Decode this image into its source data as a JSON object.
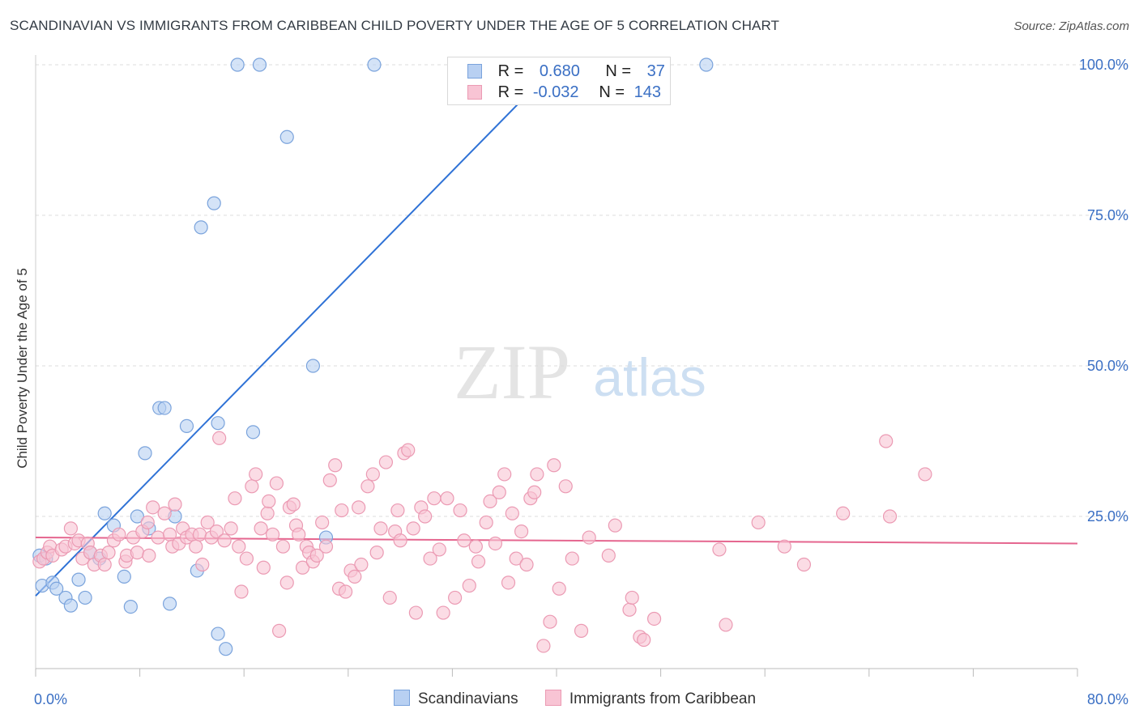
{
  "title": "SCANDINAVIAN VS IMMIGRANTS FROM CARIBBEAN CHILD POVERTY UNDER THE AGE OF 5 CORRELATION CHART",
  "source": "Source: ZipAtlas.com",
  "watermark": {
    "zip": "ZIP",
    "atlas": "atlas"
  },
  "legend": {
    "rows": [
      {
        "r_label": "R =",
        "r_value": "0.680",
        "n_label": "N =",
        "n_value": "37"
      },
      {
        "r_label": "R =",
        "r_value": "-0.032",
        "n_label": "N =",
        "n_value": "143"
      }
    ]
  },
  "bottom_legend": [
    "Scandinavians",
    "Immigrants from Caribbean"
  ],
  "chart_data": {
    "type": "scatter",
    "title": "SCANDINAVIAN VS IMMIGRANTS FROM CARIBBEAN CHILD POVERTY UNDER THE AGE OF 5 CORRELATION CHART",
    "xlabel": "",
    "ylabel": "Child Poverty Under the Age of 5",
    "xlim": [
      0,
      80
    ],
    "ylim": [
      0,
      100
    ],
    "x_tick_labels": [
      "0.0%",
      "80.0%"
    ],
    "y_ticks": [
      25,
      50,
      75,
      100
    ],
    "y_tick_labels": [
      "25.0%",
      "50.0%",
      "75.0%",
      "100.0%"
    ],
    "grid": true,
    "colors": {
      "scandinavians_fill": "#b8d0f2",
      "scandinavians_stroke": "#7aa3dc",
      "scandinavians_line": "#2f72d6",
      "caribbean_fill": "#f8c4d4",
      "caribbean_stroke": "#eb9ab3",
      "caribbean_line": "#e5668f",
      "axis_label": "#3a6fc4"
    },
    "series": [
      {
        "name": "Scandinavians",
        "r": 0.68,
        "n": 37,
        "trend": {
          "x": [
            0,
            40
          ],
          "y": [
            11.8,
            100
          ]
        },
        "points": [
          [
            0.3,
            18.5
          ],
          [
            0.5,
            13.5
          ],
          [
            1.3,
            14.0
          ],
          [
            1.6,
            13.0
          ],
          [
            2.3,
            11.5
          ],
          [
            2.7,
            10.2
          ],
          [
            3.3,
            14.5
          ],
          [
            3.8,
            11.5
          ],
          [
            4.2,
            19.0
          ],
          [
            4.9,
            18.0
          ],
          [
            5.3,
            25.5
          ],
          [
            6.0,
            23.5
          ],
          [
            6.8,
            15.0
          ],
          [
            7.3,
            10.0
          ],
          [
            7.8,
            25.0
          ],
          [
            8.4,
            35.5
          ],
          [
            8.7,
            23.0
          ],
          [
            9.5,
            43.0
          ],
          [
            9.9,
            43.0
          ],
          [
            10.3,
            10.5
          ],
          [
            10.7,
            25.0
          ],
          [
            11.6,
            40.0
          ],
          [
            12.4,
            16.0
          ],
          [
            12.7,
            73.0
          ],
          [
            13.7,
            77.0
          ],
          [
            14.0,
            40.5
          ],
          [
            14.0,
            5.5
          ],
          [
            14.6,
            3.0
          ],
          [
            15.5,
            100
          ],
          [
            16.7,
            39.0
          ],
          [
            17.2,
            100
          ],
          [
            19.3,
            88.0
          ],
          [
            21.3,
            50.0
          ],
          [
            22.3,
            21.5
          ],
          [
            26.0,
            100
          ],
          [
            51.5,
            100
          ],
          [
            0.8,
            18.0
          ]
        ]
      },
      {
        "name": "Immigrants from Caribbean",
        "r": -0.032,
        "n": 143,
        "trend": {
          "x": [
            0,
            80
          ],
          "y": [
            21.5,
            20.5
          ]
        },
        "points": [
          [
            0.3,
            17.5
          ],
          [
            0.6,
            18.0
          ],
          [
            0.9,
            19.0
          ],
          [
            1.1,
            20.0
          ],
          [
            1.3,
            18.5
          ],
          [
            2.0,
            19.5
          ],
          [
            2.3,
            20.0
          ],
          [
            2.7,
            23.0
          ],
          [
            3.0,
            20.5
          ],
          [
            3.3,
            21.0
          ],
          [
            3.6,
            18.0
          ],
          [
            4.0,
            20.5
          ],
          [
            4.2,
            19.0
          ],
          [
            4.5,
            17.0
          ],
          [
            5.0,
            18.5
          ],
          [
            5.3,
            17.0
          ],
          [
            5.6,
            19.0
          ],
          [
            6.0,
            21.0
          ],
          [
            6.4,
            22.0
          ],
          [
            6.9,
            17.5
          ],
          [
            7.0,
            18.5
          ],
          [
            7.5,
            21.5
          ],
          [
            7.8,
            19.0
          ],
          [
            8.2,
            22.5
          ],
          [
            8.6,
            24.0
          ],
          [
            8.7,
            18.5
          ],
          [
            9.0,
            26.5
          ],
          [
            9.4,
            21.5
          ],
          [
            9.9,
            25.5
          ],
          [
            10.3,
            22.0
          ],
          [
            10.5,
            20.0
          ],
          [
            10.7,
            27.0
          ],
          [
            11.0,
            20.5
          ],
          [
            11.3,
            23.0
          ],
          [
            11.6,
            21.5
          ],
          [
            12.0,
            22.0
          ],
          [
            12.3,
            20.0
          ],
          [
            12.6,
            22.0
          ],
          [
            12.8,
            17.0
          ],
          [
            13.2,
            24.0
          ],
          [
            13.5,
            21.5
          ],
          [
            13.9,
            22.5
          ],
          [
            14.1,
            38.0
          ],
          [
            14.5,
            21.0
          ],
          [
            15.0,
            23.0
          ],
          [
            15.3,
            28.0
          ],
          [
            15.6,
            20.0
          ],
          [
            15.8,
            12.5
          ],
          [
            16.2,
            18.0
          ],
          [
            16.6,
            30.0
          ],
          [
            16.9,
            32.0
          ],
          [
            17.3,
            23.0
          ],
          [
            17.5,
            16.5
          ],
          [
            17.8,
            25.5
          ],
          [
            17.9,
            27.5
          ],
          [
            18.2,
            22.0
          ],
          [
            18.5,
            30.5
          ],
          [
            18.7,
            6.0
          ],
          [
            19.0,
            20.0
          ],
          [
            19.3,
            14.0
          ],
          [
            19.5,
            26.5
          ],
          [
            19.8,
            27.0
          ],
          [
            20.0,
            23.5
          ],
          [
            20.2,
            22.0
          ],
          [
            20.5,
            16.5
          ],
          [
            20.8,
            20.0
          ],
          [
            21.0,
            19.0
          ],
          [
            21.3,
            17.5
          ],
          [
            21.6,
            18.5
          ],
          [
            22.0,
            24.0
          ],
          [
            22.3,
            20.0
          ],
          [
            22.6,
            31.0
          ],
          [
            23.0,
            33.5
          ],
          [
            23.3,
            13.0
          ],
          [
            23.5,
            26.0
          ],
          [
            23.8,
            12.5
          ],
          [
            24.2,
            16.0
          ],
          [
            24.5,
            15.0
          ],
          [
            24.8,
            26.5
          ],
          [
            25.0,
            17.0
          ],
          [
            25.5,
            30.0
          ],
          [
            25.9,
            32.0
          ],
          [
            26.2,
            19.0
          ],
          [
            26.5,
            23.0
          ],
          [
            26.9,
            34.0
          ],
          [
            27.2,
            11.5
          ],
          [
            27.6,
            22.5
          ],
          [
            27.8,
            26.0
          ],
          [
            28.0,
            21.0
          ],
          [
            28.3,
            35.5
          ],
          [
            28.6,
            36.0
          ],
          [
            29.0,
            23.0
          ],
          [
            29.2,
            9.0
          ],
          [
            29.6,
            26.5
          ],
          [
            29.9,
            25.0
          ],
          [
            30.3,
            18.0
          ],
          [
            30.6,
            28.0
          ],
          [
            31.0,
            19.5
          ],
          [
            31.3,
            9.0
          ],
          [
            31.6,
            28.0
          ],
          [
            32.2,
            11.5
          ],
          [
            32.6,
            26.0
          ],
          [
            32.9,
            21.0
          ],
          [
            33.3,
            13.5
          ],
          [
            33.8,
            20.0
          ],
          [
            34.0,
            17.5
          ],
          [
            34.6,
            24.0
          ],
          [
            34.9,
            27.5
          ],
          [
            35.3,
            20.5
          ],
          [
            35.6,
            29.0
          ],
          [
            36.0,
            32.0
          ],
          [
            36.3,
            14.0
          ],
          [
            36.6,
            25.5
          ],
          [
            36.9,
            18.0
          ],
          [
            37.3,
            22.5
          ],
          [
            37.7,
            17.0
          ],
          [
            38.0,
            28.0
          ],
          [
            38.3,
            29.0
          ],
          [
            38.5,
            32.0
          ],
          [
            39.0,
            3.5
          ],
          [
            39.5,
            7.5
          ],
          [
            39.8,
            33.5
          ],
          [
            40.2,
            13.0
          ],
          [
            40.7,
            30.0
          ],
          [
            41.2,
            18.0
          ],
          [
            41.9,
            6.0
          ],
          [
            42.5,
            21.5
          ],
          [
            44.0,
            18.5
          ],
          [
            44.5,
            23.5
          ],
          [
            45.6,
            9.5
          ],
          [
            45.8,
            11.5
          ],
          [
            46.4,
            5.0
          ],
          [
            46.7,
            4.5
          ],
          [
            47.5,
            8.0
          ],
          [
            52.5,
            19.5
          ],
          [
            53.0,
            7.0
          ],
          [
            55.5,
            24.0
          ],
          [
            57.5,
            20.0
          ],
          [
            59.0,
            17.0
          ],
          [
            62.0,
            25.5
          ],
          [
            65.6,
            25.0
          ],
          [
            65.3,
            37.5
          ],
          [
            68.3,
            32.0
          ]
        ]
      }
    ]
  }
}
